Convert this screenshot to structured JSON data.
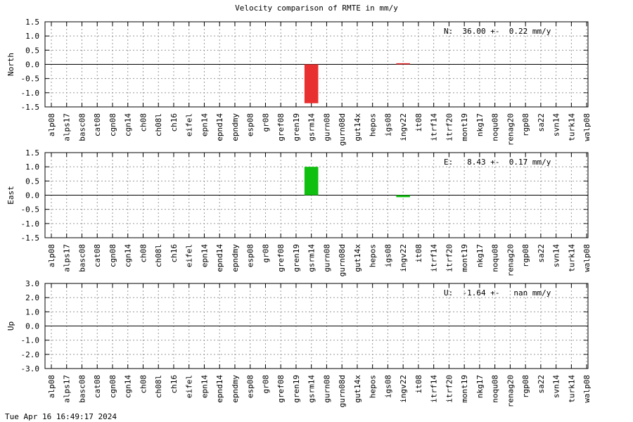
{
  "title": "Velocity comparison of RMTE in mm/y",
  "timestamp": "Tue Apr 16 16:49:17 2024",
  "chart_data": {
    "type": "bar",
    "title": "Velocity comparison of RMTE in mm/y",
    "categories": [
      "alp08",
      "alps17",
      "basc08",
      "cat08",
      "cgn08",
      "cgn14",
      "ch08",
      "ch08l",
      "ch16",
      "eifel",
      "epn14",
      "epnd14",
      "epndmy",
      "esp08",
      "gr08",
      "gref08",
      "gren19",
      "gsrm14",
      "gurn08",
      "gurn08d",
      "gut14x",
      "hepos",
      "igs08",
      "ingv22",
      "it08",
      "itrf14",
      "itrf20",
      "mont19",
      "nkg17",
      "noqu08",
      "renag20",
      "rgp08",
      "sa22",
      "svn14",
      "turk14",
      "walp08"
    ],
    "grid": true,
    "panels": [
      {
        "ylabel": "North",
        "ylim": [
          -1.5,
          1.5
        ],
        "yticks": [
          "1.5",
          "1.0",
          "0.5",
          "0.0",
          "-0.5",
          "-1.0",
          "-1.5"
        ],
        "annotation": "N:  36.00 +-  0.22 mm/y",
        "color": "#e83030",
        "values": [
          null,
          null,
          null,
          null,
          null,
          null,
          null,
          null,
          null,
          null,
          null,
          null,
          null,
          null,
          null,
          null,
          null,
          -1.37,
          null,
          null,
          null,
          null,
          null,
          0.04,
          null,
          null,
          null,
          null,
          null,
          null,
          null,
          null,
          null,
          null,
          null,
          null
        ]
      },
      {
        "ylabel": "East",
        "ylim": [
          -1.5,
          1.5
        ],
        "yticks": [
          "1.5",
          "1.0",
          "0.5",
          "0.0",
          "-0.5",
          "-1.0",
          "-1.5"
        ],
        "annotation": "E:   8.43 +-  0.17 mm/y",
        "color": "#10c010",
        "values": [
          null,
          null,
          null,
          null,
          null,
          null,
          null,
          null,
          null,
          null,
          null,
          null,
          null,
          null,
          null,
          null,
          null,
          1.0,
          null,
          null,
          null,
          null,
          null,
          -0.07,
          null,
          null,
          null,
          null,
          null,
          null,
          null,
          null,
          null,
          null,
          null,
          null
        ]
      },
      {
        "ylabel": "Up",
        "ylim": [
          -3.0,
          3.0
        ],
        "yticks": [
          "3.0",
          "2.0",
          "1.0",
          "0.0",
          "-1.0",
          "-2.0",
          "-3.0"
        ],
        "annotation": "U:  -1.64 +-   nan mm/y",
        "color": "#3030e0",
        "values": [
          null,
          null,
          null,
          null,
          null,
          null,
          null,
          null,
          null,
          null,
          null,
          null,
          null,
          null,
          null,
          null,
          null,
          null,
          null,
          null,
          null,
          null,
          null,
          null,
          null,
          null,
          null,
          null,
          null,
          null,
          null,
          null,
          null,
          null,
          null,
          null
        ]
      }
    ]
  }
}
